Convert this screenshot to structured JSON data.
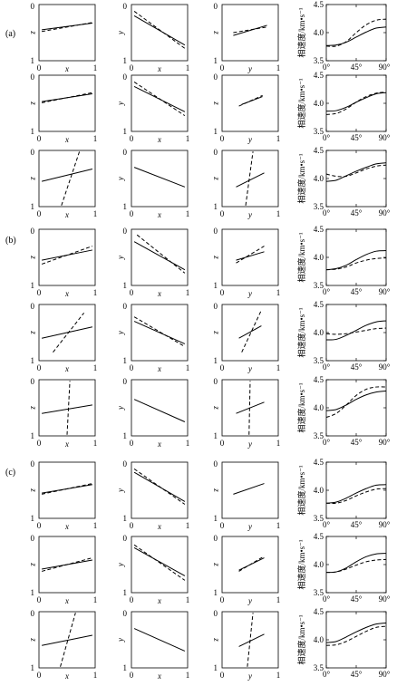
{
  "figure": {
    "groups": [
      {
        "label": "(a)"
      },
      {
        "label": "(b)"
      },
      {
        "label": "(c)"
      }
    ],
    "phase_ylabel": "相速度/km•s⁻¹"
  },
  "chart_data": {
    "type": "small-multiples",
    "axes": {
      "xz": {
        "xlabel": "x",
        "ylabel": "z",
        "xticks": [
          "0",
          "1"
        ],
        "yticks": [
          "0",
          "1"
        ],
        "ylabel_inverted": true
      },
      "xy": {
        "xlabel": "x",
        "ylabel": "y",
        "xticks": [
          "0",
          "1"
        ],
        "yticks": [
          "0",
          "1"
        ],
        "ylabel_inverted": false
      },
      "yz": {
        "xlabel": "y",
        "ylabel": "z",
        "xticks": [
          "0",
          "1"
        ],
        "yticks": [
          "0",
          "1"
        ],
        "ylabel_inverted": true
      },
      "phase": {
        "xticks": [
          "0°",
          "45°",
          "90°"
        ],
        "yticks": [
          "3.5",
          "4.0",
          "4.5"
        ],
        "ylim": [
          3.5,
          4.5
        ],
        "xlim": [
          0,
          90
        ]
      }
    },
    "rows": [
      {
        "xz": {
          "solid": [
            [
              0.05,
              0.45
            ],
            [
              0.95,
              0.33
            ]
          ],
          "dashed": [
            [
              0.05,
              0.48
            ],
            [
              0.95,
              0.32
            ]
          ]
        },
        "xy": {
          "solid": [
            [
              0.05,
              0.2
            ],
            [
              0.95,
              0.72
            ]
          ],
          "dashed": [
            [
              0.05,
              0.12
            ],
            [
              0.95,
              0.78
            ]
          ]
        },
        "yz": {
          "solid": [
            [
              0.2,
              0.55
            ],
            [
              0.8,
              0.37
            ]
          ],
          "dashed": [
            [
              0.2,
              0.5
            ],
            [
              0.8,
              0.4
            ]
          ]
        },
        "phase": {
          "solid": [
            [
              0,
              3.77
            ],
            [
              15,
              3.78
            ],
            [
              30,
              3.83
            ],
            [
              45,
              3.92
            ],
            [
              60,
              4.01
            ],
            [
              75,
              4.08
            ],
            [
              90,
              4.1
            ]
          ],
          "dashed": [
            [
              0,
              3.76
            ],
            [
              15,
              3.76
            ],
            [
              30,
              3.84
            ],
            [
              45,
              4.0
            ],
            [
              60,
              4.14
            ],
            [
              75,
              4.22
            ],
            [
              90,
              4.24
            ]
          ]
        }
      },
      {
        "xz": {
          "solid": [
            [
              0.05,
              0.47
            ],
            [
              0.95,
              0.33
            ]
          ],
          "dashed": [
            [
              0.05,
              0.49
            ],
            [
              0.95,
              0.31
            ]
          ]
        },
        "xy": {
          "solid": [
            [
              0.05,
              0.2
            ],
            [
              0.95,
              0.65
            ]
          ],
          "dashed": [
            [
              0.05,
              0.12
            ],
            [
              0.95,
              0.72
            ]
          ]
        },
        "yz": {
          "solid": [
            [
              0.35,
              0.52
            ],
            [
              0.72,
              0.38
            ]
          ],
          "dashed": [
            [
              0.3,
              0.55
            ],
            [
              0.72,
              0.36
            ]
          ]
        },
        "phase": {
          "solid": [
            [
              0,
              3.86
            ],
            [
              15,
              3.87
            ],
            [
              30,
              3.93
            ],
            [
              45,
              4.02
            ],
            [
              60,
              4.1
            ],
            [
              75,
              4.17
            ],
            [
              90,
              4.19
            ]
          ],
          "dashed": [
            [
              0,
              3.8
            ],
            [
              15,
              3.82
            ],
            [
              30,
              3.9
            ],
            [
              45,
              4.02
            ],
            [
              60,
              4.12
            ],
            [
              75,
              4.18
            ],
            [
              90,
              4.2
            ]
          ]
        }
      },
      {
        "xz": {
          "solid": [
            [
              0.05,
              0.55
            ],
            [
              0.95,
              0.33
            ]
          ],
          "dashed": [
            [
              0.4,
              0.98
            ],
            [
              0.72,
              0.02
            ]
          ]
        },
        "xy": {
          "solid": [
            [
              0.05,
              0.3
            ],
            [
              0.95,
              0.65
            ]
          ],
          "dashed": []
        },
        "yz": {
          "solid": [
            [
              0.25,
              0.65
            ],
            [
              0.75,
              0.4
            ]
          ],
          "dashed": [
            [
              0.42,
              0.98
            ],
            [
              0.55,
              0.02
            ]
          ]
        },
        "phase": {
          "solid": [
            [
              0,
              3.95
            ],
            [
              15,
              3.97
            ],
            [
              30,
              4.05
            ],
            [
              45,
              4.13
            ],
            [
              60,
              4.2
            ],
            [
              75,
              4.26
            ],
            [
              90,
              4.28
            ]
          ],
          "dashed": [
            [
              0,
              4.08
            ],
            [
              15,
              4.04
            ],
            [
              30,
              4.04
            ],
            [
              45,
              4.1
            ],
            [
              60,
              4.17
            ],
            [
              75,
              4.22
            ],
            [
              90,
              4.24
            ]
          ]
        }
      },
      {
        "xz": {
          "solid": [
            [
              0.05,
              0.55
            ],
            [
              0.95,
              0.37
            ]
          ],
          "dashed": [
            [
              0.05,
              0.62
            ],
            [
              0.95,
              0.3
            ]
          ]
        },
        "xy": {
          "solid": [
            [
              0.05,
              0.22
            ],
            [
              0.95,
              0.72
            ]
          ],
          "dashed": [
            [
              0.1,
              0.1
            ],
            [
              0.95,
              0.78
            ]
          ]
        },
        "yz": {
          "solid": [
            [
              0.25,
              0.55
            ],
            [
              0.75,
              0.4
            ]
          ],
          "dashed": [
            [
              0.25,
              0.6
            ],
            [
              0.75,
              0.3
            ]
          ]
        },
        "phase": {
          "solid": [
            [
              0,
              3.78
            ],
            [
              15,
              3.8
            ],
            [
              30,
              3.86
            ],
            [
              45,
              3.96
            ],
            [
              60,
              4.05
            ],
            [
              75,
              4.11
            ],
            [
              90,
              4.12
            ]
          ],
          "dashed": [
            [
              0,
              3.78
            ],
            [
              15,
              3.79
            ],
            [
              30,
              3.83
            ],
            [
              45,
              3.9
            ],
            [
              60,
              3.95
            ],
            [
              75,
              3.98
            ],
            [
              90,
              3.99
            ]
          ]
        }
      },
      {
        "xz": {
          "solid": [
            [
              0.05,
              0.6
            ],
            [
              0.95,
              0.4
            ]
          ],
          "dashed": [
            [
              0.25,
              0.85
            ],
            [
              0.8,
              0.15
            ]
          ]
        },
        "xy": {
          "solid": [
            [
              0.05,
              0.3
            ],
            [
              0.95,
              0.7
            ]
          ],
          "dashed": [
            [
              0.05,
              0.22
            ],
            [
              0.95,
              0.75
            ]
          ]
        },
        "yz": {
          "solid": [
            [
              0.3,
              0.6
            ],
            [
              0.7,
              0.38
            ]
          ],
          "dashed": [
            [
              0.35,
              0.85
            ],
            [
              0.7,
              0.1
            ]
          ]
        },
        "phase": {
          "solid": [
            [
              0,
              3.87
            ],
            [
              15,
              3.88
            ],
            [
              30,
              3.95
            ],
            [
              45,
              4.04
            ],
            [
              60,
              4.13
            ],
            [
              75,
              4.19
            ],
            [
              90,
              4.21
            ]
          ],
          "dashed": [
            [
              0,
              3.98
            ],
            [
              15,
              3.97
            ],
            [
              30,
              3.98
            ],
            [
              45,
              4.01
            ],
            [
              60,
              4.04
            ],
            [
              75,
              4.07
            ],
            [
              90,
              4.08
            ]
          ]
        }
      },
      {
        "xz": {
          "solid": [
            [
              0.05,
              0.6
            ],
            [
              0.95,
              0.45
            ]
          ],
          "dashed": [
            [
              0.5,
              0.98
            ],
            [
              0.55,
              0.02
            ]
          ]
        },
        "xy": {
          "solid": [
            [
              0.05,
              0.35
            ],
            [
              0.95,
              0.75
            ]
          ],
          "dashed": []
        },
        "yz": {
          "solid": [
            [
              0.25,
              0.6
            ],
            [
              0.75,
              0.4
            ]
          ],
          "dashed": [
            [
              0.48,
              0.98
            ],
            [
              0.5,
              0.02
            ]
          ]
        },
        "phase": {
          "solid": [
            [
              0,
              3.95
            ],
            [
              15,
              3.97
            ],
            [
              30,
              4.05
            ],
            [
              45,
              4.15
            ],
            [
              60,
              4.23
            ],
            [
              75,
              4.28
            ],
            [
              90,
              4.3
            ]
          ],
          "dashed": [
            [
              0,
              3.83
            ],
            [
              15,
              3.9
            ],
            [
              30,
              4.05
            ],
            [
              45,
              4.22
            ],
            [
              60,
              4.33
            ],
            [
              75,
              4.37
            ],
            [
              90,
              4.37
            ]
          ]
        }
      },
      {
        "xz": {
          "solid": [
            [
              0.05,
              0.55
            ],
            [
              0.95,
              0.4
            ]
          ],
          "dashed": [
            [
              0.05,
              0.57
            ],
            [
              0.95,
              0.38
            ]
          ]
        },
        "xy": {
          "solid": [
            [
              0.05,
              0.18
            ],
            [
              0.95,
              0.7
            ]
          ],
          "dashed": [
            [
              0.05,
              0.12
            ],
            [
              0.95,
              0.75
            ]
          ]
        },
        "yz": {
          "solid": [
            [
              0.2,
              0.57
            ],
            [
              0.75,
              0.38
            ]
          ],
          "dashed": []
        },
        "phase": {
          "solid": [
            [
              0,
              3.77
            ],
            [
              15,
              3.79
            ],
            [
              30,
              3.86
            ],
            [
              45,
              3.95
            ],
            [
              60,
              4.03
            ],
            [
              75,
              4.09
            ],
            [
              90,
              4.1
            ]
          ],
          "dashed": [
            [
              0,
              3.77
            ],
            [
              15,
              3.77
            ],
            [
              30,
              3.82
            ],
            [
              45,
              3.9
            ],
            [
              60,
              3.97
            ],
            [
              75,
              4.02
            ],
            [
              90,
              4.03
            ]
          ]
        }
      },
      {
        "xz": {
          "solid": [
            [
              0.05,
              0.58
            ],
            [
              0.95,
              0.42
            ]
          ],
          "dashed": [
            [
              0.05,
              0.62
            ],
            [
              0.95,
              0.38
            ]
          ]
        },
        "xy": {
          "solid": [
            [
              0.05,
              0.2
            ],
            [
              0.95,
              0.7
            ]
          ],
          "dashed": [
            [
              0.05,
              0.15
            ],
            [
              0.95,
              0.78
            ]
          ]
        },
        "yz": {
          "solid": [
            [
              0.3,
              0.6
            ],
            [
              0.75,
              0.38
            ]
          ],
          "dashed": [
            [
              0.3,
              0.62
            ],
            [
              0.75,
              0.35
            ]
          ]
        },
        "phase": {
          "solid": [
            [
              0,
              3.86
            ],
            [
              15,
              3.87
            ],
            [
              30,
              3.94
            ],
            [
              45,
              4.05
            ],
            [
              60,
              4.14
            ],
            [
              75,
              4.19
            ],
            [
              90,
              4.2
            ]
          ],
          "dashed": [
            [
              0,
              3.86
            ],
            [
              15,
              3.87
            ],
            [
              30,
              3.92
            ],
            [
              45,
              3.99
            ],
            [
              60,
              4.05
            ],
            [
              75,
              4.08
            ],
            [
              90,
              4.09
            ]
          ]
        }
      },
      {
        "xz": {
          "solid": [
            [
              0.05,
              0.6
            ],
            [
              0.95,
              0.42
            ]
          ],
          "dashed": [
            [
              0.38,
              0.98
            ],
            [
              0.65,
              0.02
            ]
          ]
        },
        "xy": {
          "solid": [
            [
              0.05,
              0.3
            ],
            [
              0.95,
              0.7
            ]
          ],
          "dashed": []
        },
        "yz": {
          "solid": [
            [
              0.3,
              0.62
            ],
            [
              0.75,
              0.4
            ]
          ],
          "dashed": [
            [
              0.45,
              0.98
            ],
            [
              0.55,
              0.02
            ]
          ]
        },
        "phase": {
          "solid": [
            [
              0,
              3.95
            ],
            [
              15,
              3.97
            ],
            [
              30,
              4.05
            ],
            [
              45,
              4.14
            ],
            [
              60,
              4.22
            ],
            [
              75,
              4.28
            ],
            [
              90,
              4.3
            ]
          ],
          "dashed": [
            [
              0,
              3.9
            ],
            [
              15,
              3.91
            ],
            [
              30,
              3.97
            ],
            [
              45,
              4.06
            ],
            [
              60,
              4.15
            ],
            [
              75,
              4.22
            ],
            [
              90,
              4.24
            ]
          ]
        }
      }
    ]
  }
}
